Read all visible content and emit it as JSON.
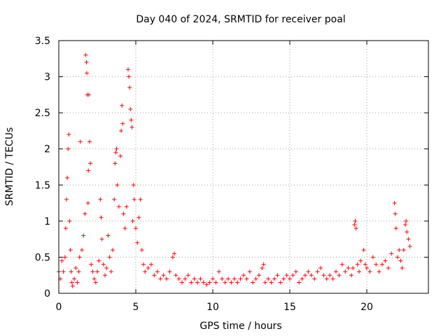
{
  "chart_data": {
    "type": "scatter",
    "title": "Day 040 of 2024, SRMTID for receiver poal",
    "xlabel": "GPS time / hours",
    "ylabel": "SRMTID / TECUs",
    "xlim": [
      0,
      24
    ],
    "ylim": [
      0,
      3.5
    ],
    "xticks": [
      0,
      5,
      10,
      15,
      20
    ],
    "xtick_labels": [
      "0",
      "5",
      "10",
      "15",
      "20"
    ],
    "yticks": [
      0,
      0.5,
      1,
      1.5,
      2,
      2.5,
      3,
      3.5
    ],
    "ytick_labels": [
      "0",
      "0.5",
      "1",
      "1.5",
      "2",
      "2.5",
      "3",
      "3.5"
    ],
    "grid": true,
    "marker": "plus",
    "color": "#ff0000",
    "series": [
      {
        "name": "SRMTID",
        "points": [
          [
            0.0,
            0.3
          ],
          [
            0.1,
            0.2
          ],
          [
            0.2,
            0.45
          ],
          [
            0.3,
            0.3
          ],
          [
            0.4,
            0.5
          ],
          [
            0.45,
            0.9
          ],
          [
            0.5,
            1.3
          ],
          [
            0.55,
            1.6
          ],
          [
            0.6,
            2.0
          ],
          [
            0.65,
            2.2
          ],
          [
            0.7,
            1.0
          ],
          [
            0.75,
            0.6
          ],
          [
            0.8,
            0.3
          ],
          [
            0.85,
            0.15
          ],
          [
            0.9,
            0.1
          ],
          [
            1.0,
            0.2
          ],
          [
            1.1,
            0.35
          ],
          [
            1.2,
            0.15
          ],
          [
            1.3,
            0.3
          ],
          [
            1.35,
            0.5
          ],
          [
            1.4,
            2.1
          ],
          [
            1.5,
            0.6
          ],
          [
            1.6,
            0.8
          ],
          [
            1.7,
            1.1
          ],
          [
            1.75,
            3.3
          ],
          [
            1.8,
            3.2
          ],
          [
            1.82,
            3.05
          ],
          [
            1.85,
            2.75
          ],
          [
            1.9,
            1.25
          ],
          [
            1.92,
            1.7
          ],
          [
            1.95,
            2.75
          ],
          [
            2.0,
            2.1
          ],
          [
            2.05,
            1.8
          ],
          [
            2.1,
            0.4
          ],
          [
            2.2,
            0.3
          ],
          [
            2.3,
            0.2
          ],
          [
            2.4,
            0.15
          ],
          [
            2.5,
            0.3
          ],
          [
            2.6,
            0.45
          ],
          [
            2.7,
            1.3
          ],
          [
            2.75,
            1.05
          ],
          [
            2.8,
            0.75
          ],
          [
            2.9,
            0.4
          ],
          [
            3.0,
            0.25
          ],
          [
            3.1,
            0.35
          ],
          [
            3.2,
            0.8
          ],
          [
            3.3,
            0.5
          ],
          [
            3.4,
            0.3
          ],
          [
            3.5,
            0.6
          ],
          [
            3.6,
            1.3
          ],
          [
            3.65,
            1.8
          ],
          [
            3.7,
            1.95
          ],
          [
            3.75,
            2.0
          ],
          [
            3.8,
            1.5
          ],
          [
            3.9,
            1.2
          ],
          [
            4.0,
            1.9
          ],
          [
            4.05,
            2.25
          ],
          [
            4.1,
            2.6
          ],
          [
            4.15,
            2.35
          ],
          [
            4.2,
            1.1
          ],
          [
            4.3,
            0.9
          ],
          [
            4.4,
            1.2
          ],
          [
            4.5,
            3.1
          ],
          [
            4.55,
            3.0
          ],
          [
            4.6,
            2.85
          ],
          [
            4.65,
            2.55
          ],
          [
            4.7,
            2.4
          ],
          [
            4.75,
            2.3
          ],
          [
            4.8,
            1.0
          ],
          [
            4.85,
            1.5
          ],
          [
            4.9,
            1.3
          ],
          [
            5.0,
            0.9
          ],
          [
            5.1,
            0.7
          ],
          [
            5.2,
            1.05
          ],
          [
            5.3,
            1.3
          ],
          [
            5.4,
            0.6
          ],
          [
            5.5,
            0.4
          ],
          [
            5.6,
            0.3
          ],
          [
            5.8,
            0.35
          ],
          [
            6.0,
            0.4
          ],
          [
            6.2,
            0.25
          ],
          [
            6.4,
            0.3
          ],
          [
            6.6,
            0.2
          ],
          [
            6.8,
            0.25
          ],
          [
            7.0,
            0.2
          ],
          [
            7.2,
            0.3
          ],
          [
            7.4,
            0.5
          ],
          [
            7.5,
            0.55
          ],
          [
            7.6,
            0.25
          ],
          [
            7.8,
            0.2
          ],
          [
            8.0,
            0.15
          ],
          [
            8.2,
            0.2
          ],
          [
            8.4,
            0.25
          ],
          [
            8.6,
            0.15
          ],
          [
            8.8,
            0.2
          ],
          [
            9.0,
            0.15
          ],
          [
            9.2,
            0.2
          ],
          [
            9.4,
            0.15
          ],
          [
            9.6,
            0.12
          ],
          [
            9.8,
            0.15
          ],
          [
            10.0,
            0.2
          ],
          [
            10.2,
            0.15
          ],
          [
            10.4,
            0.3
          ],
          [
            10.6,
            0.2
          ],
          [
            10.8,
            0.15
          ],
          [
            11.0,
            0.2
          ],
          [
            11.2,
            0.15
          ],
          [
            11.4,
            0.2
          ],
          [
            11.6,
            0.15
          ],
          [
            11.8,
            0.2
          ],
          [
            12.0,
            0.25
          ],
          [
            12.2,
            0.2
          ],
          [
            12.4,
            0.3
          ],
          [
            12.6,
            0.15
          ],
          [
            12.8,
            0.2
          ],
          [
            13.0,
            0.25
          ],
          [
            13.2,
            0.35
          ],
          [
            13.3,
            0.4
          ],
          [
            13.4,
            0.15
          ],
          [
            13.6,
            0.2
          ],
          [
            13.8,
            0.15
          ],
          [
            14.0,
            0.2
          ],
          [
            14.2,
            0.25
          ],
          [
            14.4,
            0.15
          ],
          [
            14.6,
            0.2
          ],
          [
            14.8,
            0.25
          ],
          [
            15.0,
            0.2
          ],
          [
            15.2,
            0.25
          ],
          [
            15.4,
            0.3
          ],
          [
            15.6,
            0.15
          ],
          [
            15.8,
            0.2
          ],
          [
            16.0,
            0.25
          ],
          [
            16.2,
            0.3
          ],
          [
            16.4,
            0.25
          ],
          [
            16.6,
            0.2
          ],
          [
            16.8,
            0.3
          ],
          [
            17.0,
            0.35
          ],
          [
            17.2,
            0.25
          ],
          [
            17.4,
            0.2
          ],
          [
            17.6,
            0.25
          ],
          [
            17.8,
            0.2
          ],
          [
            18.0,
            0.3
          ],
          [
            18.2,
            0.25
          ],
          [
            18.4,
            0.4
          ],
          [
            18.6,
            0.3
          ],
          [
            18.8,
            0.35
          ],
          [
            19.0,
            0.25
          ],
          [
            19.1,
            0.35
          ],
          [
            19.2,
            0.95
          ],
          [
            19.25,
            1.0
          ],
          [
            19.3,
            0.9
          ],
          [
            19.4,
            0.4
          ],
          [
            19.5,
            0.3
          ],
          [
            19.6,
            0.45
          ],
          [
            19.8,
            0.6
          ],
          [
            19.9,
            0.4
          ],
          [
            20.0,
            0.35
          ],
          [
            20.2,
            0.3
          ],
          [
            20.4,
            0.5
          ],
          [
            20.6,
            0.4
          ],
          [
            20.8,
            0.3
          ],
          [
            21.0,
            0.4
          ],
          [
            21.2,
            0.45
          ],
          [
            21.4,
            0.35
          ],
          [
            21.6,
            0.55
          ],
          [
            21.8,
            1.25
          ],
          [
            21.85,
            1.1
          ],
          [
            21.9,
            0.9
          ],
          [
            22.0,
            0.5
          ],
          [
            22.1,
            0.6
          ],
          [
            22.2,
            0.45
          ],
          [
            22.3,
            0.35
          ],
          [
            22.4,
            0.6
          ],
          [
            22.5,
            0.95
          ],
          [
            22.55,
            1.0
          ],
          [
            22.6,
            0.85
          ],
          [
            22.7,
            0.75
          ],
          [
            22.8,
            0.65
          ]
        ]
      }
    ]
  }
}
